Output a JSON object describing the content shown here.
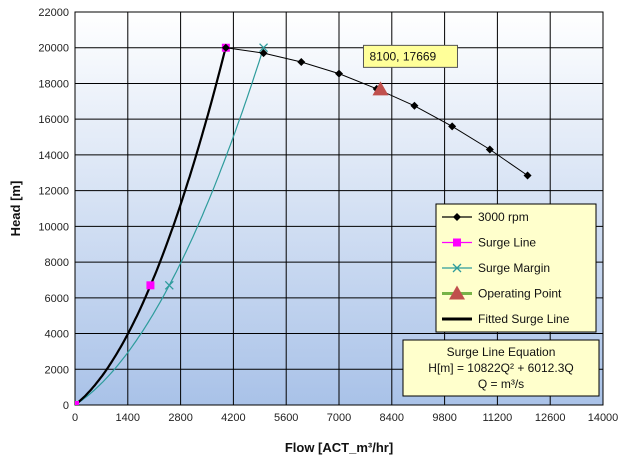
{
  "chart_data": {
    "type": "line",
    "xlabel": "Flow [ACT_m³/hr]",
    "ylabel": "Head [m]",
    "xlim": [
      0,
      14000
    ],
    "ylim": [
      0,
      22000
    ],
    "x_ticks": [
      0,
      1400,
      2800,
      4200,
      5600,
      7000,
      8400,
      9800,
      11200,
      12600,
      14000
    ],
    "y_ticks": [
      0,
      2000,
      4000,
      6000,
      8000,
      10000,
      12000,
      14000,
      16000,
      18000,
      20000,
      22000
    ],
    "grid": true,
    "legend_position": "bottom-right",
    "series": [
      {
        "name": "3000 rpm",
        "color": "#000000",
        "marker": "diamond",
        "x": [
          4000,
          5000,
          6000,
          7000,
          8000,
          9000,
          10000,
          11000,
          12000
        ],
        "y": [
          20000,
          19700,
          19200,
          18550,
          17700,
          16750,
          15600,
          14300,
          12850
        ]
      },
      {
        "name": "Surge Line",
        "color": "#ff00ff",
        "marker": "square",
        "x": [
          0,
          2000,
          4000
        ],
        "y": [
          0,
          6700,
          20000
        ]
      },
      {
        "name": "Surge Margin",
        "color": "#2e9c9c",
        "marker": "x",
        "x": [
          0,
          2500,
          5000
        ],
        "y": [
          0,
          6700,
          20000
        ]
      },
      {
        "name": "Operating Point",
        "color": "#c0504d",
        "marker": "triangle",
        "x": [
          8100
        ],
        "y": [
          17669
        ]
      },
      {
        "name": "Fitted Surge Line",
        "color": "#000000",
        "marker": "none",
        "equation": {
          "a": 10822,
          "b": 6012.3
        }
      }
    ],
    "annotations": {
      "tooltip": "8100, 17669",
      "equation_box": [
        "Surge Line Equation",
        "H[m] = 10822Q² + 6012.3Q",
        "Q = m³/s"
      ]
    }
  },
  "colors": {
    "plot_bg_top": "#ffffff",
    "plot_bg_bottom": "#a9c2e8",
    "legend_bg": "#ffffcc",
    "tooltip_bg": "#ffff99",
    "grid": "#000000"
  }
}
